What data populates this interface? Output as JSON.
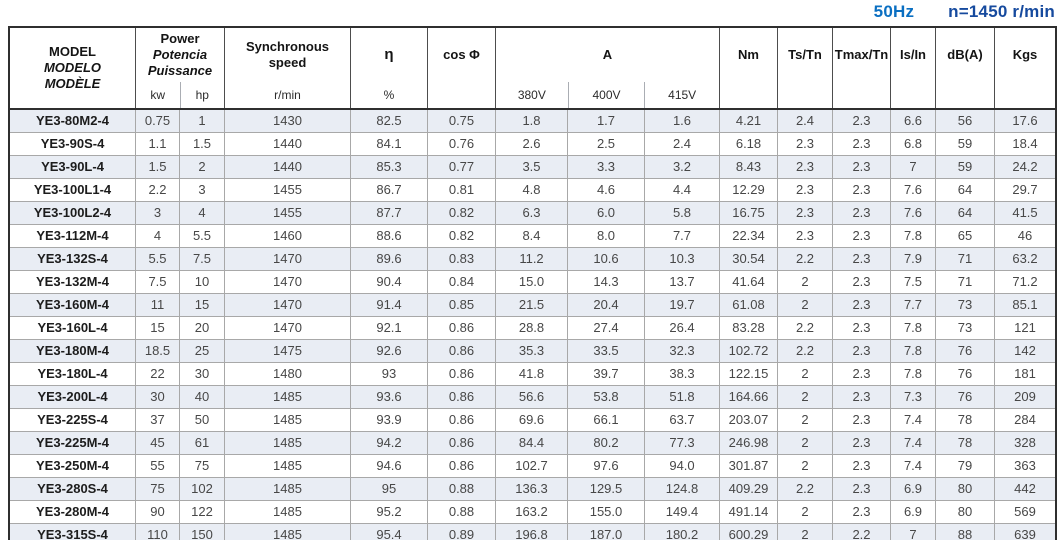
{
  "page": {
    "frequency": "50Hz",
    "rated_speed": "n=1450 r/min"
  },
  "colors": {
    "frequency_blue": "#0a6fc2",
    "speed_navy": "#164a9e",
    "stripe": "#e9edf4",
    "grid_line": "#a8a8a8",
    "frame": "#2f2f2f"
  },
  "table": {
    "header": {
      "model_lines": [
        "MODEL",
        "MODELO",
        "MODÈLE"
      ],
      "power_lines": [
        "Power",
        "Potencia",
        "Puissance"
      ],
      "power_sub": [
        "kw",
        "hp"
      ],
      "sync_lines": [
        "Synchronous",
        "speed"
      ],
      "sync_sub": "r/min",
      "efficiency": "η",
      "efficiency_sub": "%",
      "cos_phi": "cos Φ",
      "current": "A",
      "current_sub": [
        "380V",
        "400V",
        "415V"
      ],
      "torque": "Nm",
      "ts_tn": "Ts/Tn",
      "tmax_tn": "Tmax/Tn",
      "is_in": "Is/In",
      "noise": "dB(A)",
      "weight": "Kgs"
    },
    "rows": [
      [
        "YE3-80M2-4",
        "0.75",
        "1",
        "1430",
        "82.5",
        "0.75",
        "1.8",
        "1.7",
        "1.6",
        "4.21",
        "2.4",
        "2.3",
        "6.6",
        "56",
        "17.6"
      ],
      [
        "YE3-90S-4",
        "1.1",
        "1.5",
        "1440",
        "84.1",
        "0.76",
        "2.6",
        "2.5",
        "2.4",
        "6.18",
        "2.3",
        "2.3",
        "6.8",
        "59",
        "18.4"
      ],
      [
        "YE3-90L-4",
        "1.5",
        "2",
        "1440",
        "85.3",
        "0.77",
        "3.5",
        "3.3",
        "3.2",
        "8.43",
        "2.3",
        "2.3",
        "7",
        "59",
        "24.2"
      ],
      [
        "YE3-100L1-4",
        "2.2",
        "3",
        "1455",
        "86.7",
        "0.81",
        "4.8",
        "4.6",
        "4.4",
        "12.29",
        "2.3",
        "2.3",
        "7.6",
        "64",
        "29.7"
      ],
      [
        "YE3-100L2-4",
        "3",
        "4",
        "1455",
        "87.7",
        "0.82",
        "6.3",
        "6.0",
        "5.8",
        "16.75",
        "2.3",
        "2.3",
        "7.6",
        "64",
        "41.5"
      ],
      [
        "YE3-112M-4",
        "4",
        "5.5",
        "1460",
        "88.6",
        "0.82",
        "8.4",
        "8.0",
        "7.7",
        "22.34",
        "2.3",
        "2.3",
        "7.8",
        "65",
        "46"
      ],
      [
        "YE3-132S-4",
        "5.5",
        "7.5",
        "1470",
        "89.6",
        "0.83",
        "11.2",
        "10.6",
        "10.3",
        "30.54",
        "2.2",
        "2.3",
        "7.9",
        "71",
        "63.2"
      ],
      [
        "YE3-132M-4",
        "7.5",
        "10",
        "1470",
        "90.4",
        "0.84",
        "15.0",
        "14.3",
        "13.7",
        "41.64",
        "2",
        "2.3",
        "7.5",
        "71",
        "71.2"
      ],
      [
        "YE3-160M-4",
        "11",
        "15",
        "1470",
        "91.4",
        "0.85",
        "21.5",
        "20.4",
        "19.7",
        "61.08",
        "2",
        "2.3",
        "7.7",
        "73",
        "85.1"
      ],
      [
        "YE3-160L-4",
        "15",
        "20",
        "1470",
        "92.1",
        "0.86",
        "28.8",
        "27.4",
        "26.4",
        "83.28",
        "2.2",
        "2.3",
        "7.8",
        "73",
        "121"
      ],
      [
        "YE3-180M-4",
        "18.5",
        "25",
        "1475",
        "92.6",
        "0.86",
        "35.3",
        "33.5",
        "32.3",
        "102.72",
        "2.2",
        "2.3",
        "7.8",
        "76",
        "142"
      ],
      [
        "YE3-180L-4",
        "22",
        "30",
        "1480",
        "93",
        "0.86",
        "41.8",
        "39.7",
        "38.3",
        "122.15",
        "2",
        "2.3",
        "7.8",
        "76",
        "181"
      ],
      [
        "YE3-200L-4",
        "30",
        "40",
        "1485",
        "93.6",
        "0.86",
        "56.6",
        "53.8",
        "51.8",
        "164.66",
        "2",
        "2.3",
        "7.3",
        "76",
        "209"
      ],
      [
        "YE3-225S-4",
        "37",
        "50",
        "1485",
        "93.9",
        "0.86",
        "69.6",
        "66.1",
        "63.7",
        "203.07",
        "2",
        "2.3",
        "7.4",
        "78",
        "284"
      ],
      [
        "YE3-225M-4",
        "45",
        "61",
        "1485",
        "94.2",
        "0.86",
        "84.4",
        "80.2",
        "77.3",
        "246.98",
        "2",
        "2.3",
        "7.4",
        "78",
        "328"
      ],
      [
        "YE3-250M-4",
        "55",
        "75",
        "1485",
        "94.6",
        "0.86",
        "102.7",
        "97.6",
        "94.0",
        "301.87",
        "2",
        "2.3",
        "7.4",
        "79",
        "363"
      ],
      [
        "YE3-280S-4",
        "75",
        "102",
        "1485",
        "95",
        "0.88",
        "136.3",
        "129.5",
        "124.8",
        "409.29",
        "2.2",
        "2.3",
        "6.9",
        "80",
        "442"
      ],
      [
        "YE3-280M-4",
        "90",
        "122",
        "1485",
        "95.2",
        "0.88",
        "163.2",
        "155.0",
        "149.4",
        "491.14",
        "2",
        "2.3",
        "6.9",
        "80",
        "569"
      ],
      [
        "YE3-315S-4",
        "110",
        "150",
        "1485",
        "95.4",
        "0.89",
        "196.8",
        "187.0",
        "180.2",
        "600.29",
        "2",
        "2.2",
        "7",
        "88",
        "639"
      ]
    ]
  }
}
